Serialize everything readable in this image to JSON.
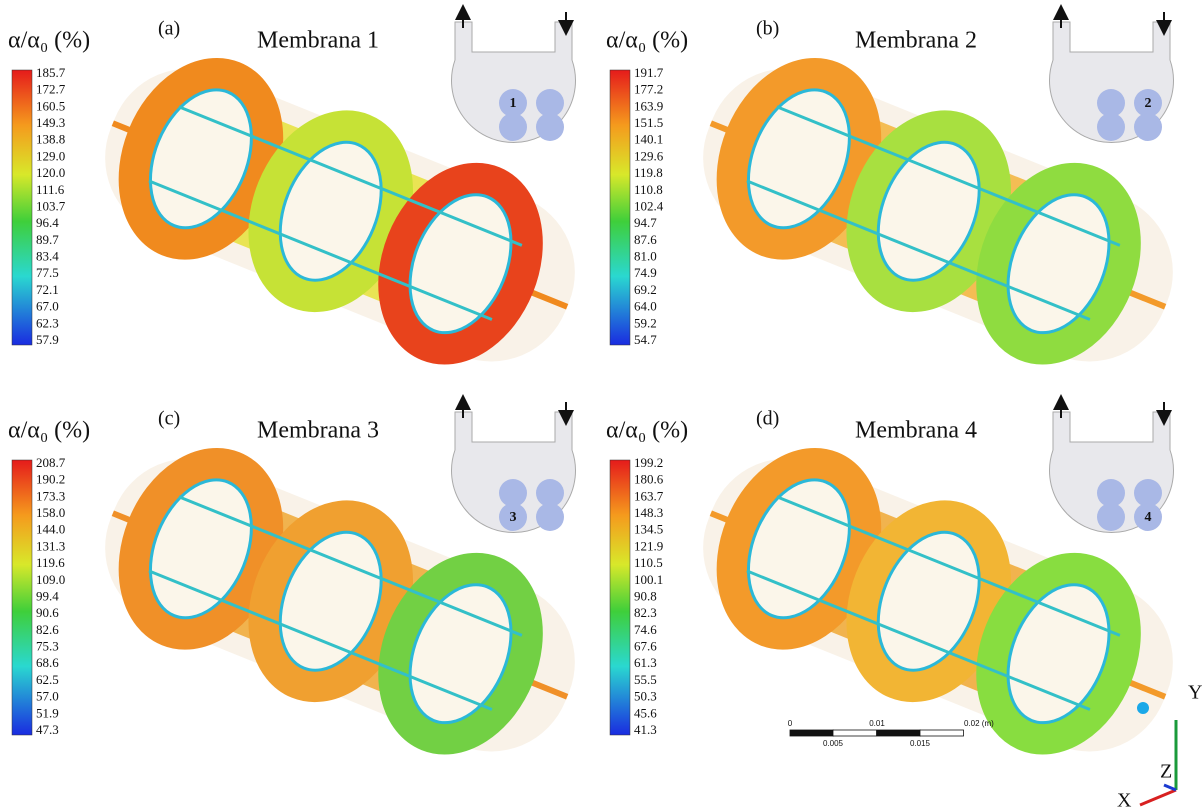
{
  "panels": [
    {
      "tag": "(a)",
      "title": "Membrana 1",
      "membrane": "1",
      "colorbar": {
        "label": "α/α₀ (%)",
        "ticks": [
          "185.7",
          "172.7",
          "160.5",
          "149.3",
          "138.8",
          "129.0",
          "120.0",
          "111.6",
          "103.7",
          "96.4",
          "89.7",
          "83.4",
          "77.5",
          "72.1",
          "67.0",
          "62.3",
          "57.9"
        ]
      }
    },
    {
      "tag": "(b)",
      "title": "Membrana 2",
      "membrane": "2",
      "colorbar": {
        "label": "α/α₀ (%)",
        "ticks": [
          "191.7",
          "177.2",
          "163.9",
          "151.5",
          "140.1",
          "129.6",
          "119.8",
          "110.8",
          "102.4",
          "94.7",
          "87.6",
          "81.0",
          "74.9",
          "69.2",
          "64.0",
          "59.2",
          "54.7"
        ]
      }
    },
    {
      "tag": "(c)",
      "title": "Membrana 3",
      "membrane": "3",
      "colorbar": {
        "label": "α/α₀ (%)",
        "ticks": [
          "208.7",
          "190.2",
          "173.3",
          "158.0",
          "144.0",
          "131.3",
          "119.6",
          "109.0",
          "99.4",
          "90.6",
          "82.6",
          "75.3",
          "68.6",
          "62.5",
          "57.0",
          "51.9",
          "47.3"
        ]
      }
    },
    {
      "tag": "(d)",
      "title": "Membrana 4",
      "membrane": "4",
      "colorbar": {
        "label": "α/α₀ (%)",
        "ticks": [
          "199.2",
          "180.6",
          "163.7",
          "148.3",
          "134.5",
          "121.9",
          "110.5",
          "100.1",
          "90.8",
          "82.3",
          "74.6",
          "67.6",
          "61.3",
          "55.5",
          "50.3",
          "45.6",
          "41.3"
        ]
      }
    }
  ],
  "scale_bar": {
    "major": [
      "0",
      "0.01",
      "0.02 (m)"
    ],
    "minor": [
      "0.005",
      "0.015"
    ]
  },
  "axes": {
    "y": "Y",
    "z": "Z",
    "x": "X"
  }
}
